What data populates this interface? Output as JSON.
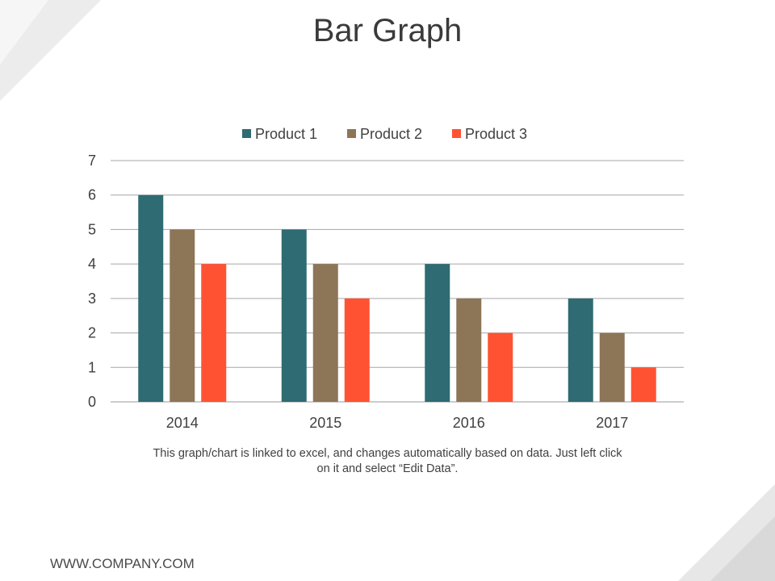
{
  "slide": {
    "title": "Bar Graph",
    "caption": "This graph/chart is linked to excel, and changes automatically based on data. Just left click on it and select “Edit Data”.",
    "footer_url": "WWW.COMPANY.COM"
  },
  "chart_data": {
    "type": "bar",
    "categories": [
      "2014",
      "2015",
      "2016",
      "2017"
    ],
    "series": [
      {
        "name": "Product 1",
        "values": [
          6,
          5,
          4,
          3
        ],
        "color": "#2e6b72"
      },
      {
        "name": "Product 2",
        "values": [
          5,
          4,
          3,
          2
        ],
        "color": "#8d7558"
      },
      {
        "name": "Product 3",
        "values": [
          4,
          3,
          2,
          1
        ],
        "color": "#ff5233"
      }
    ],
    "title": "",
    "xlabel": "",
    "ylabel": "",
    "ylim": [
      0,
      7
    ],
    "yticks": [
      0,
      1,
      2,
      3,
      4,
      5,
      6,
      7
    ],
    "grid": true,
    "legend": "top-center"
  }
}
